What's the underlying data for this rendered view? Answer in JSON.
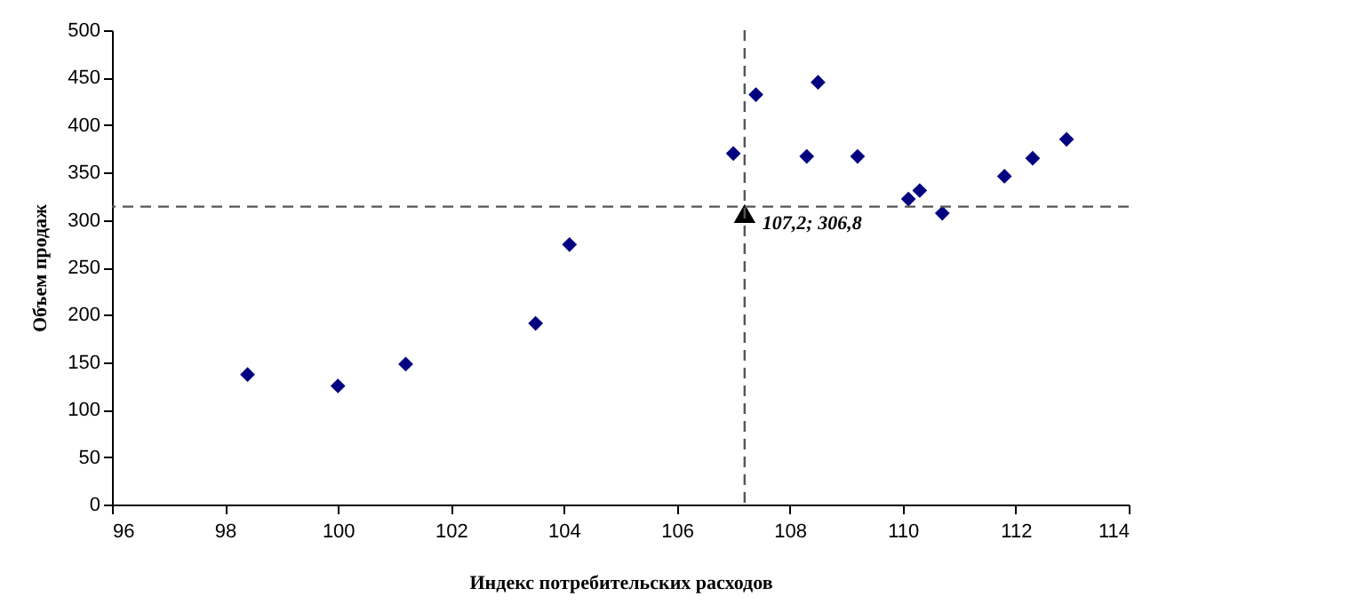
{
  "chart_data": {
    "type": "scatter",
    "xlabel": "Индекс потребительских расходов",
    "ylabel": "Объем продаж",
    "x": [
      98.4,
      100.0,
      101.2,
      103.5,
      104.1,
      107.0,
      107.4,
      108.5,
      108.3,
      109.2,
      110.1,
      110.3,
      110.7,
      111.8,
      112.3,
      112.9
    ],
    "series": [
      {
        "color": "#000080",
        "marker": "diamond",
        "values": [
          137,
          125,
          148,
          191,
          274,
          370,
          432,
          445,
          367,
          367,
          322,
          331,
          307,
          346,
          365,
          385
        ]
      },
      {
        "color": "#000000",
        "marker": "triangle",
        "x": [
          107.2
        ],
        "values": [
          306.8
        ]
      }
    ],
    "annotations": [
      {
        "text": "107,2; 306,8",
        "x": 107.2,
        "y": 306.8
      }
    ],
    "ref_lines": [
      {
        "axis": "x",
        "value": 107.2,
        "color": "#555555",
        "line_style": "dashed"
      },
      {
        "axis": "y",
        "value": 314,
        "color": "#555555",
        "line_style": "dashed"
      }
    ],
    "xlim": [
      96,
      114
    ],
    "xticks": [
      96,
      98,
      100,
      102,
      104,
      106,
      108,
      110,
      112,
      114
    ],
    "ylim": [
      0,
      500
    ],
    "yticks": [
      0,
      50,
      100,
      150,
      200,
      250,
      300,
      350,
      400,
      450,
      500
    ],
    "grid": false
  }
}
